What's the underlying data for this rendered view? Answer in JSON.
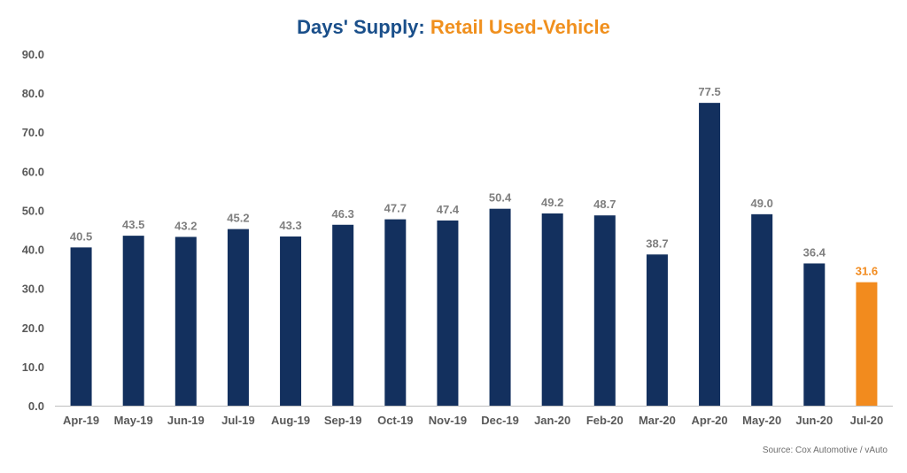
{
  "chart_data": {
    "type": "bar",
    "title_part1": "Days' Supply:",
    "title_part2": "Retail Used-Vehicle",
    "categories": [
      "Apr-19",
      "May-19",
      "Jun-19",
      "Jul-19",
      "Aug-19",
      "Sep-19",
      "Oct-19",
      "Nov-19",
      "Dec-19",
      "Jan-20",
      "Feb-20",
      "Mar-20",
      "Apr-20",
      "May-20",
      "Jun-20",
      "Jul-20"
    ],
    "values": [
      40.5,
      43.5,
      43.2,
      45.2,
      43.3,
      46.3,
      47.7,
      47.4,
      50.4,
      49.2,
      48.7,
      38.7,
      77.5,
      49.0,
      36.4,
      31.6
    ],
    "value_labels": [
      "40.5",
      "43.5",
      "43.2",
      "45.2",
      "43.3",
      "46.3",
      "47.7",
      "47.4",
      "50.4",
      "49.2",
      "48.7",
      "38.7",
      "77.5",
      "49.0",
      "36.4",
      "31.6"
    ],
    "highlight_index": 15,
    "ylim": [
      0,
      90
    ],
    "yticks": [
      "0.0",
      "10.0",
      "20.0",
      "30.0",
      "40.0",
      "50.0",
      "60.0",
      "70.0",
      "80.0",
      "90.0"
    ],
    "grid": false,
    "legend": "none",
    "colors": {
      "bar": "#13305e",
      "highlight_bar": "#f28b1e",
      "value_label": "#7f7f7f",
      "highlight_label": "#f28b1e",
      "axis": "#bfbfbf"
    }
  },
  "source": "Source: Cox Automotive / vAuto"
}
